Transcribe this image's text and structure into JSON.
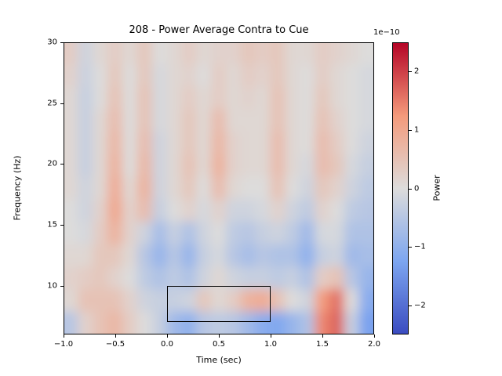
{
  "figure": {
    "title": "208 - Power Average Contra to Cue",
    "xlabel": "Time (sec)",
    "ylabel": "Frequency (Hz)"
  },
  "chart_data": {
    "type": "heatmap",
    "title": "208 - Power Average Contra to Cue",
    "xlabel": "Time (sec)",
    "ylabel": "Frequency (Hz)",
    "x_range_sec": [
      -1.0,
      2.0
    ],
    "y_range_hz": [
      6,
      30
    ],
    "x_ticks": [
      {
        "v": -1.0,
        "label": "−1.0"
      },
      {
        "v": -0.5,
        "label": "−0.5"
      },
      {
        "v": 0.0,
        "label": "0.0"
      },
      {
        "v": 0.5,
        "label": "0.5"
      },
      {
        "v": 1.0,
        "label": "1.0"
      },
      {
        "v": 1.5,
        "label": "1.5"
      },
      {
        "v": 2.0,
        "label": "2.0"
      }
    ],
    "y_ticks": [
      {
        "v": 30,
        "label": "30"
      },
      {
        "v": 25,
        "label": "25"
      },
      {
        "v": 20,
        "label": "20"
      },
      {
        "v": 15,
        "label": "15"
      },
      {
        "v": 10,
        "label": "10"
      }
    ],
    "colorbar": {
      "label": "Power",
      "offset_text": "1e−10",
      "clim": [
        -2.5,
        2.5
      ],
      "value_scale": 1e-10,
      "colormap": "coolwarm",
      "colormap_anchors": [
        "#3b4cc0",
        "#7da6f0",
        "#dddcdb",
        "#f49a7b",
        "#b40426"
      ],
      "ticks": [
        {
          "v": 2,
          "label": "2"
        },
        {
          "v": 1,
          "label": "1"
        },
        {
          "v": 0,
          "label": "0"
        },
        {
          "v": -1,
          "label": "−1"
        },
        {
          "v": -2,
          "label": "−2"
        }
      ]
    },
    "roi_rect": {
      "t0": 0.0,
      "t1": 1.0,
      "f0": 7,
      "f1": 10
    },
    "grid_times_sec": [
      -0.93,
      -0.79,
      -0.64,
      -0.5,
      -0.36,
      -0.21,
      -0.07,
      0.07,
      0.21,
      0.36,
      0.5,
      0.64,
      0.79,
      0.93,
      1.07,
      1.21,
      1.36,
      1.5,
      1.64,
      1.79,
      1.93
    ],
    "grid_freqs_hz": [
      29.1,
      27.2,
      25.4,
      23.5,
      21.7,
      19.8,
      18.0,
      16.2,
      14.3,
      12.5,
      10.6,
      8.8,
      6.9
    ],
    "values_1e-10": [
      [
        0.3,
        -0.2,
        0.1,
        0.3,
        0.1,
        0.4,
        0.0,
        0.1,
        0.3,
        0.1,
        0.2,
        0.2,
        0.4,
        0.3,
        0.4,
        0.1,
        0.1,
        0.3,
        0.2,
        0.1,
        0.0
      ],
      [
        0.2,
        -0.25,
        0.0,
        0.4,
        0.0,
        0.4,
        -0.1,
        0.1,
        0.2,
        0.0,
        0.3,
        0.1,
        0.3,
        0.2,
        0.4,
        0.1,
        0.0,
        0.3,
        0.1,
        0.0,
        -0.1
      ],
      [
        0.1,
        -0.3,
        0.0,
        0.5,
        0.0,
        0.5,
        -0.1,
        0.1,
        0.3,
        0.1,
        0.3,
        0.1,
        0.2,
        0.1,
        0.5,
        0.1,
        0.0,
        0.4,
        0.1,
        0.0,
        -0.1
      ],
      [
        0.1,
        -0.3,
        0.1,
        0.6,
        0.0,
        0.5,
        -0.1,
        0.1,
        0.4,
        0.1,
        0.6,
        0.1,
        0.1,
        0.1,
        0.5,
        0.1,
        0.0,
        0.5,
        0.2,
        0.0,
        -0.1
      ],
      [
        0.1,
        -0.3,
        0.1,
        0.7,
        0.0,
        0.6,
        -0.2,
        0.1,
        0.4,
        0.1,
        0.7,
        0.2,
        0.1,
        0.1,
        0.6,
        0.1,
        0.0,
        0.6,
        0.3,
        0.0,
        -0.2
      ],
      [
        0.1,
        -0.3,
        0.1,
        0.8,
        0.0,
        0.7,
        -0.2,
        0.1,
        0.5,
        0.1,
        0.8,
        0.2,
        0.1,
        0.1,
        0.6,
        0.1,
        -0.1,
        0.6,
        0.4,
        -0.1,
        -0.3
      ],
      [
        0.1,
        -0.2,
        0.1,
        0.9,
        0.1,
        0.8,
        -0.2,
        0.1,
        0.4,
        0.0,
        0.6,
        0.1,
        0.0,
        0.0,
        0.5,
        0.0,
        -0.2,
        0.4,
        0.2,
        -0.2,
        -0.4
      ],
      [
        0.0,
        -0.2,
        0.2,
        1.0,
        0.2,
        0.6,
        -0.3,
        0.0,
        0.2,
        -0.1,
        0.2,
        -0.2,
        -0.2,
        -0.1,
        0.2,
        -0.2,
        -0.4,
        0.2,
        0.0,
        -0.4,
        -0.5
      ],
      [
        0.0,
        -0.1,
        0.3,
        0.8,
        0.2,
        -0.2,
        -0.7,
        -0.3,
        -0.6,
        -0.2,
        0.0,
        -0.4,
        -0.5,
        -0.3,
        -0.2,
        -0.4,
        -0.8,
        -0.1,
        -0.1,
        -0.6,
        -0.6
      ],
      [
        0.1,
        0.1,
        0.4,
        0.4,
        0.1,
        -0.5,
        -0.9,
        -0.5,
        -0.9,
        -0.3,
        -0.1,
        -0.5,
        -0.7,
        -0.5,
        -0.6,
        -0.6,
        -1.0,
        -0.3,
        -0.2,
        -0.8,
        -0.7
      ],
      [
        0.2,
        0.3,
        0.4,
        0.2,
        0.0,
        -0.4,
        -0.6,
        -0.4,
        -0.6,
        -0.2,
        0.1,
        -0.2,
        -0.3,
        -0.3,
        -0.4,
        -0.3,
        -0.6,
        0.3,
        0.5,
        -0.5,
        -0.9
      ],
      [
        0.1,
        0.5,
        0.5,
        0.5,
        0.2,
        -0.2,
        -0.3,
        -0.3,
        -0.2,
        0.4,
        0.1,
        0.3,
        0.8,
        0.9,
        0.5,
        0.0,
        -0.2,
        1.2,
        1.6,
        0.0,
        -1.1
      ],
      [
        -0.5,
        0.2,
        0.5,
        0.7,
        0.3,
        0.0,
        -0.3,
        -0.8,
        -1.0,
        -0.5,
        -0.4,
        -0.5,
        -0.8,
        -1.1,
        -1.2,
        -0.9,
        -0.6,
        1.4,
        1.7,
        -0.3,
        -1.3
      ]
    ]
  }
}
